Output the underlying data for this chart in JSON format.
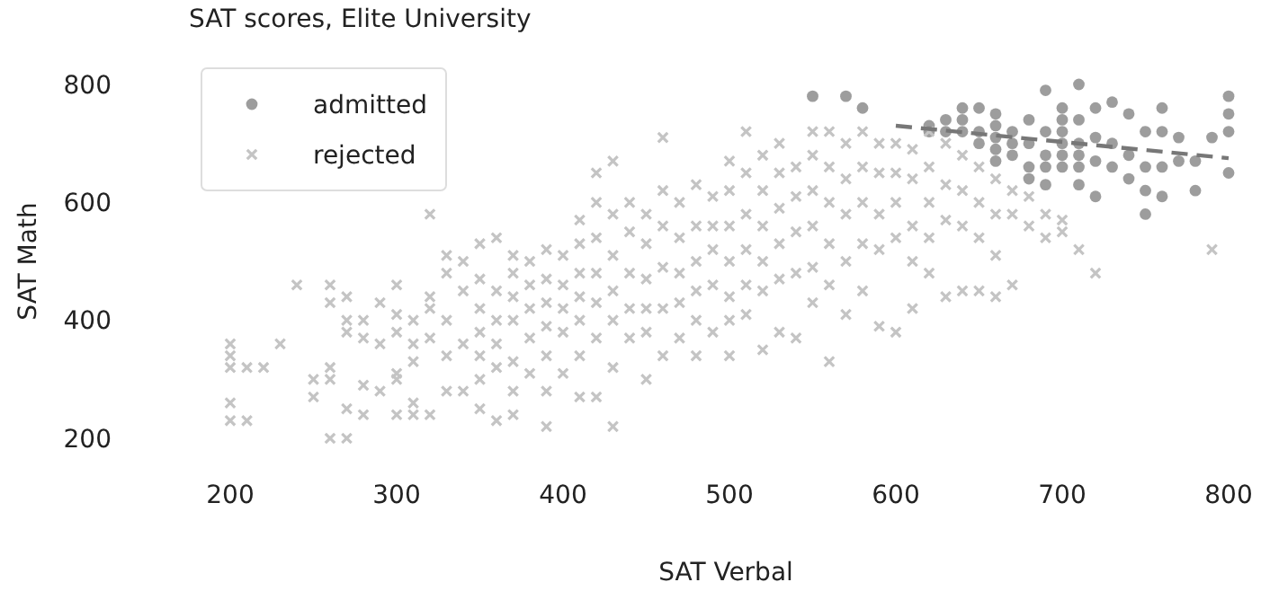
{
  "chart_data": {
    "type": "scatter",
    "title": "SAT scores, Elite University",
    "xlabel": "SAT Verbal",
    "ylabel": "SAT Math",
    "xlim": [
      200,
      800
    ],
    "ylim": [
      200,
      800
    ],
    "xticks": [
      200,
      300,
      400,
      500,
      600,
      700,
      800
    ],
    "yticks": [
      200,
      400,
      600,
      800
    ],
    "grid": false,
    "legend": "top left",
    "series": [
      {
        "name": "admitted",
        "marker": "circle",
        "color": "#8c8c8c",
        "x": [
          550,
          570,
          580,
          620,
          620,
          630,
          630,
          640,
          640,
          640,
          650,
          650,
          650,
          660,
          660,
          660,
          660,
          660,
          670,
          670,
          670,
          680,
          680,
          680,
          680,
          690,
          690,
          690,
          690,
          690,
          700,
          700,
          700,
          700,
          700,
          700,
          710,
          710,
          710,
          710,
          710,
          710,
          720,
          720,
          720,
          720,
          730,
          730,
          730,
          740,
          740,
          740,
          750,
          750,
          750,
          750,
          760,
          760,
          760,
          760,
          770,
          770,
          780,
          780,
          790,
          800,
          800,
          800,
          800
        ],
        "values": [
          780,
          780,
          760,
          730,
          720,
          740,
          720,
          760,
          740,
          720,
          760,
          720,
          700,
          750,
          730,
          710,
          690,
          670,
          720,
          700,
          680,
          740,
          700,
          660,
          640,
          790,
          720,
          680,
          660,
          630,
          760,
          740,
          720,
          700,
          680,
          660,
          800,
          740,
          700,
          680,
          660,
          630,
          760,
          710,
          670,
          610,
          770,
          700,
          660,
          750,
          680,
          640,
          720,
          660,
          620,
          580,
          760,
          720,
          660,
          610,
          710,
          670,
          620,
          670,
          710,
          780,
          750,
          720,
          650
        ]
      },
      {
        "name": "rejected",
        "marker": "cross",
        "color": "#c4c4c4",
        "x": [
          200,
          200,
          200,
          200,
          200,
          210,
          210,
          220,
          230,
          240,
          250,
          250,
          260,
          260,
          260,
          260,
          260,
          270,
          270,
          270,
          270,
          270,
          280,
          280,
          280,
          280,
          290,
          290,
          290,
          300,
          300,
          300,
          300,
          300,
          300,
          310,
          310,
          310,
          310,
          310,
          320,
          320,
          320,
          320,
          320,
          330,
          330,
          330,
          330,
          330,
          340,
          340,
          340,
          340,
          350,
          350,
          350,
          350,
          350,
          350,
          350,
          360,
          360,
          360,
          360,
          360,
          360,
          370,
          370,
          370,
          370,
          370,
          370,
          370,
          380,
          380,
          380,
          380,
          380,
          390,
          390,
          390,
          390,
          390,
          390,
          390,
          400,
          400,
          400,
          400,
          400,
          410,
          410,
          410,
          410,
          410,
          410,
          410,
          420,
          420,
          420,
          420,
          420,
          420,
          420,
          430,
          430,
          430,
          430,
          430,
          430,
          430,
          440,
          440,
          440,
          440,
          440,
          450,
          450,
          450,
          450,
          450,
          450,
          460,
          460,
          460,
          460,
          460,
          460,
          470,
          470,
          470,
          470,
          470,
          480,
          480,
          480,
          480,
          480,
          480,
          490,
          490,
          490,
          490,
          490,
          500,
          500,
          500,
          500,
          500,
          500,
          500,
          510,
          510,
          510,
          510,
          510,
          510,
          520,
          520,
          520,
          520,
          520,
          520,
          530,
          530,
          530,
          530,
          530,
          530,
          540,
          540,
          540,
          540,
          540,
          550,
          550,
          550,
          550,
          550,
          550,
          560,
          560,
          560,
          560,
          560,
          560,
          570,
          570,
          570,
          570,
          570,
          580,
          580,
          580,
          580,
          580,
          590,
          590,
          590,
          590,
          590,
          600,
          600,
          600,
          600,
          600,
          610,
          610,
          610,
          610,
          610,
          620,
          620,
          620,
          620,
          620,
          630,
          630,
          630,
          630,
          640,
          640,
          640,
          640,
          650,
          650,
          650,
          650,
          660,
          660,
          660,
          660,
          670,
          670,
          670,
          680,
          680,
          690,
          690,
          700,
          700,
          710,
          720,
          790
        ],
        "values": [
          360,
          340,
          320,
          260,
          230,
          320,
          230,
          320,
          360,
          460,
          300,
          270,
          460,
          430,
          320,
          300,
          200,
          440,
          400,
          380,
          250,
          200,
          400,
          370,
          290,
          240,
          430,
          360,
          280,
          460,
          410,
          380,
          310,
          300,
          240,
          400,
          360,
          330,
          260,
          240,
          580,
          440,
          420,
          370,
          240,
          510,
          480,
          400,
          340,
          280,
          500,
          450,
          360,
          280,
          530,
          470,
          420,
          380,
          340,
          300,
          250,
          540,
          450,
          400,
          360,
          320,
          230,
          510,
          480,
          440,
          400,
          330,
          280,
          240,
          500,
          460,
          420,
          370,
          310,
          520,
          470,
          430,
          390,
          340,
          280,
          220,
          510,
          460,
          420,
          380,
          310,
          570,
          530,
          480,
          440,
          400,
          340,
          270,
          650,
          600,
          540,
          480,
          430,
          370,
          270,
          670,
          580,
          510,
          450,
          400,
          320,
          220,
          600,
          550,
          480,
          420,
          370,
          580,
          530,
          470,
          420,
          380,
          300,
          710,
          620,
          560,
          490,
          420,
          340,
          600,
          540,
          480,
          430,
          370,
          630,
          560,
          500,
          450,
          400,
          340,
          610,
          560,
          520,
          460,
          380,
          670,
          620,
          560,
          500,
          440,
          400,
          340,
          720,
          650,
          580,
          520,
          460,
          410,
          680,
          620,
          560,
          500,
          450,
          350,
          700,
          650,
          590,
          530,
          470,
          380,
          660,
          610,
          550,
          480,
          370,
          720,
          680,
          620,
          560,
          490,
          430,
          720,
          660,
          600,
          530,
          460,
          330,
          700,
          640,
          580,
          500,
          410,
          720,
          660,
          600,
          530,
          450,
          700,
          650,
          580,
          520,
          390,
          700,
          650,
          600,
          540,
          380,
          690,
          640,
          560,
          500,
          420,
          720,
          660,
          600,
          540,
          480,
          700,
          630,
          570,
          440,
          680,
          620,
          560,
          450,
          660,
          600,
          540,
          450,
          640,
          580,
          510,
          440,
          620,
          580,
          460,
          610,
          560,
          580,
          540,
          570,
          550,
          520,
          480,
          520
        ]
      },
      {
        "type": "line",
        "marker": "none",
        "line_style": "dashed",
        "color": "#777777",
        "x": [
          600,
          800
        ],
        "values": [
          730,
          675
        ]
      }
    ]
  }
}
